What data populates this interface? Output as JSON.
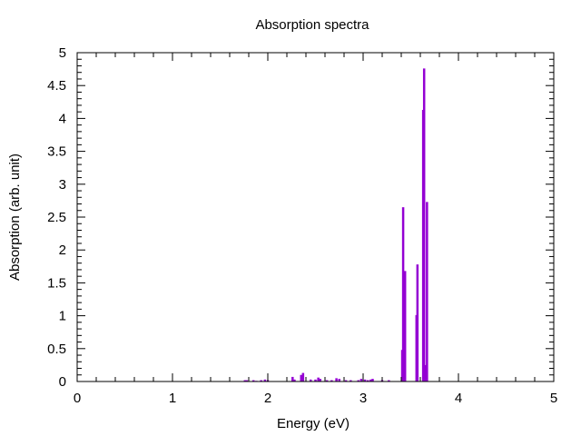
{
  "chart_data": {
    "type": "bar",
    "title": "Absorption spectra",
    "xlabel": "Energy (eV)",
    "ylabel": "Absorption (arb. unit)",
    "xlim": [
      0,
      5
    ],
    "ylim": [
      0,
      5
    ],
    "x_ticks": [
      "0",
      "1",
      "2",
      "3",
      "4",
      "5"
    ],
    "y_ticks": [
      "0",
      "0.5",
      "1",
      "1.5",
      "2",
      "2.5",
      "3",
      "3.5",
      "4",
      "4.5",
      "5"
    ],
    "grid": false,
    "legend": "none",
    "bar_color": "#9400d3",
    "series": [
      {
        "x": [
          1.76,
          1.78,
          1.85,
          1.88,
          1.93,
          1.97,
          2.0,
          2.26,
          2.28,
          2.35,
          2.37,
          2.45,
          2.5,
          2.53,
          2.55,
          2.62,
          2.67,
          2.72,
          2.75,
          2.82,
          2.87,
          2.95,
          2.98,
          3.02,
          3.05,
          3.08,
          3.1,
          3.2,
          3.27,
          3.41,
          3.42,
          3.44,
          3.56,
          3.57,
          3.63,
          3.64,
          3.65,
          3.67
        ],
        "values": [
          0.02,
          0.02,
          0.02,
          0.01,
          0.02,
          0.03,
          0.02,
          0.07,
          0.03,
          0.1,
          0.13,
          0.03,
          0.03,
          0.06,
          0.04,
          0.02,
          0.02,
          0.05,
          0.04,
          0.02,
          0.02,
          0.02,
          0.04,
          0.03,
          0.02,
          0.03,
          0.04,
          0.02,
          0.02,
          0.48,
          2.65,
          1.68,
          1.01,
          1.78,
          4.13,
          4.76,
          0.25,
          2.73
        ]
      }
    ]
  }
}
